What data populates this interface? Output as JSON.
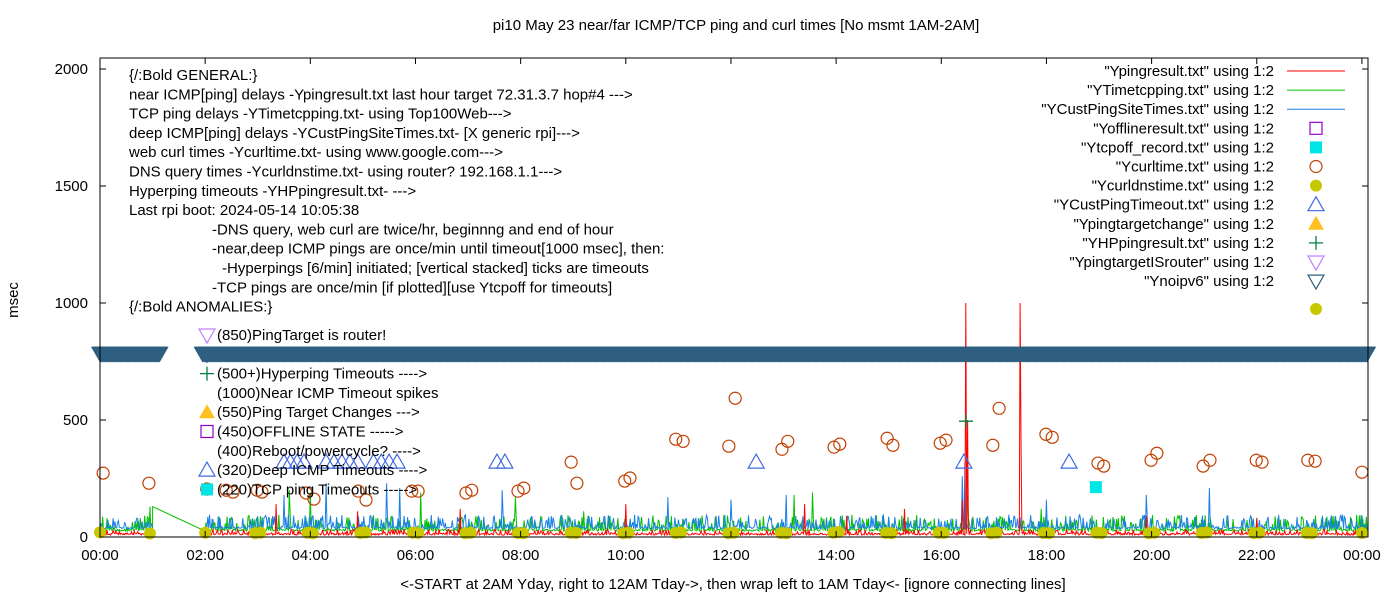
{
  "chart_data": {
    "type": "scatter",
    "title": "pi10 May 23  near/far ICMP/TCP ping and curl times [No msmt 1AM-2AM]",
    "xlabel": "<-START at 2AM Yday, right to 12AM Tday->, then wrap left to 1AM Tday<- [ignore connecting lines]",
    "ylabel": "msec",
    "xlim_hours": [
      0,
      24.1
    ],
    "ylim": [
      0,
      2000
    ],
    "xticks": [
      "00:00",
      "02:00",
      "04:00",
      "06:00",
      "08:00",
      "10:00",
      "12:00",
      "14:00",
      "16:00",
      "18:00",
      "20:00",
      "22:00",
      "00:00"
    ],
    "yticks": [
      "0",
      "500",
      "1000",
      "1500",
      "2000"
    ],
    "grid": false,
    "legend_placement": "top-right",
    "annotations": {
      "general": [
        {
          "text": "{/:Bold GENERAL:}",
          "indent": 0
        },
        {
          "text": "near ICMP[ping] delays -Ypingresult.txt last hour target 72.31.3.7 hop#4 --->",
          "indent": 0
        },
        {
          "text": "TCP ping delays -YTimetcpping.txt- using Top100Web--->",
          "indent": 0
        },
        {
          "text": "deep ICMP[ping] delays -YCustPingSiteTimes.txt- [X generic rpi]--->",
          "indent": 0
        },
        {
          "text": "web curl times -Ycurltime.txt- using www.google.com--->",
          "indent": 0
        },
        {
          "text": "DNS query times -Ycurldnstime.txt- using router? 192.168.1.1--->",
          "indent": 0
        },
        {
          "text": "Hyperping timeouts -YHPpingresult.txt- --->",
          "indent": 0
        },
        {
          "text": "Last rpi boot: 2024-05-14 10:05:38",
          "indent": 0
        },
        {
          "text": "-DNS query, web curl are twice/hr, beginnng and end of hour",
          "indent": 1
        },
        {
          "text": "-near,deep ICMP pings are once/min until timeout[1000 msec], then:",
          "indent": 1
        },
        {
          "text": "-Hyperpings [6/min] initiated; [vertical stacked] ticks are timeouts",
          "indent": 2
        },
        {
          "text": "-TCP pings are once/min [if plotted][use Ytcpoff for timeouts]",
          "indent": 1
        },
        {
          "text": "{/:Bold ANOMALIES:}",
          "indent": 0
        }
      ],
      "anomalies": [
        {
          "text": "(850)PingTarget is router!",
          "marker": "triangle-down-open",
          "color": "#c080ff"
        },
        {
          "text": "",
          "marker": "triangle-down-open",
          "color": "#2f5f80"
        },
        {
          "text": "(500+)Hyperping Timeouts ---->",
          "marker": "plus",
          "color": "#008040"
        },
        {
          "text": "(1000)Near ICMP Timeout spikes",
          "marker": "none",
          "color": "#ff0000"
        },
        {
          "text": "(550)Ping Target Changes --->",
          "marker": "triangle-up-filled",
          "color": "#ffc020"
        },
        {
          "text": "(450)OFFLINE STATE ----->",
          "marker": "square-open",
          "color": "#9400d3"
        },
        {
          "text": "(400)Reboot/powercycle? ---->",
          "marker": "none",
          "color": "#000000"
        },
        {
          "text": "(320)Deep ICMP Timeouts ---->",
          "marker": "triangle-up-open",
          "color": "#4169e1"
        },
        {
          "text": "(220)TCP ping Timeouts ----->",
          "marker": "square-filled",
          "color": "#00e5e5"
        }
      ]
    },
    "legend": [
      {
        "label": "\"Ypingresult.txt\" using 1:2",
        "marker": "line",
        "color": "#ff0000"
      },
      {
        "label": "\"YTimetcpping.txt\" using 1:2",
        "marker": "line",
        "color": "#00c000"
      },
      {
        "label": "\"YCustPingSiteTimes.txt\" using 1:2",
        "marker": "line",
        "color": "#1a80e8"
      },
      {
        "label": "\"Yofflineresult.txt\" using 1:2",
        "marker": "square-open",
        "color": "#9400d3"
      },
      {
        "label": "\"Ytcpoff_record.txt\" using 1:2",
        "marker": "square-filled",
        "color": "#00e5e5"
      },
      {
        "label": "\"Ycurltime.txt\" using 1:2",
        "marker": "circle-open",
        "color": "#c04000"
      },
      {
        "label": "\"Ycurldnstime.txt\" using 1:2",
        "marker": "circle-filled",
        "color": "#c8c800"
      },
      {
        "label": "\"YCustPingTimeout.txt\" using 1:2",
        "marker": "triangle-up-open",
        "color": "#4169e1"
      },
      {
        "label": "\"Ypingtargetchange\" using 1:2",
        "marker": "triangle-up-filled",
        "color": "#ffc020"
      },
      {
        "label": "\"YHPpingresult.txt\" using 1:2",
        "marker": "plus",
        "color": "#008040"
      },
      {
        "label": "\"YpingtargetISrouter\" using 1:2",
        "marker": "triangle-down-open",
        "color": "#c080ff"
      },
      {
        "label": "\"Ynoipv6\" using 1:2",
        "marker": "triangle-down-open",
        "color": "#2f5f80"
      },
      {
        "label": "",
        "marker": "circle-filled",
        "color": "#c8c800"
      }
    ],
    "line_series": [
      {
        "name": "Ypingresult.txt",
        "color": "#ff0000",
        "baseline": 8,
        "noise": 25,
        "gap_hours": [
          1.0,
          2.0
        ],
        "spikes": [
          [
            3.35,
            140
          ],
          [
            4.9,
            110
          ],
          [
            6.85,
            120
          ],
          [
            10.0,
            140
          ],
          [
            13.4,
            140
          ],
          [
            14.2,
            90
          ],
          [
            15.3,
            120
          ],
          [
            16.4,
            160
          ],
          [
            16.47,
            1000
          ],
          [
            16.5,
            500
          ],
          [
            17.5,
            1000
          ],
          [
            17.52,
            420
          ],
          [
            19.9,
            90
          ],
          [
            22.0,
            80
          ]
        ]
      },
      {
        "name": "YTimetcpping.txt",
        "color": "#00c000",
        "baseline": 25,
        "noise": 70,
        "gap_hours": [
          1.0,
          2.0
        ],
        "gap_connect": [
          130,
          25
        ],
        "spikes": [
          [
            0.95,
            130
          ],
          [
            3.6,
            200
          ],
          [
            4.0,
            190
          ],
          [
            6.1,
            190
          ],
          [
            7.9,
            170
          ],
          [
            9.2,
            110
          ],
          [
            13.2,
            180
          ],
          [
            13.55,
            190
          ],
          [
            16.5,
            180
          ],
          [
            17.9,
            120
          ],
          [
            20.5,
            90
          ]
        ]
      },
      {
        "name": "YCustPingSiteTimes.txt",
        "color": "#1a80e8",
        "baseline": 35,
        "noise": 60,
        "gap_hours": [
          1.0,
          2.0
        ],
        "spikes": [
          [
            3.5,
            180
          ],
          [
            4.3,
            230
          ],
          [
            5.45,
            230
          ],
          [
            5.7,
            210
          ],
          [
            7.65,
            200
          ],
          [
            10.8,
            170
          ],
          [
            12.0,
            160
          ],
          [
            13.05,
            180
          ],
          [
            16.4,
            260
          ],
          [
            16.45,
            320
          ],
          [
            18.0,
            160
          ],
          [
            19.9,
            180
          ],
          [
            21.1,
            210
          ]
        ]
      }
    ],
    "curl_times": [
      [
        0.06,
        273
      ],
      [
        0.93,
        230
      ],
      [
        2.03,
        205
      ],
      [
        2.4,
        200
      ],
      [
        2.53,
        192
      ],
      [
        2.99,
        200
      ],
      [
        3.08,
        192
      ],
      [
        3.92,
        188
      ],
      [
        4.07,
        162
      ],
      [
        4.91,
        196
      ],
      [
        5.06,
        158
      ],
      [
        5.93,
        196
      ],
      [
        6.05,
        196
      ],
      [
        6.96,
        188
      ],
      [
        7.07,
        200
      ],
      [
        7.95,
        196
      ],
      [
        8.06,
        209
      ],
      [
        8.96,
        320
      ],
      [
        9.07,
        230
      ],
      [
        9.98,
        239
      ],
      [
        10.08,
        252
      ],
      [
        10.95,
        418
      ],
      [
        11.09,
        409
      ],
      [
        11.96,
        388
      ],
      [
        12.08,
        593
      ],
      [
        12.97,
        375
      ],
      [
        13.08,
        409
      ],
      [
        13.96,
        384
      ],
      [
        14.07,
        397
      ],
      [
        14.97,
        422
      ],
      [
        15.08,
        392
      ],
      [
        15.98,
        401
      ],
      [
        16.09,
        414
      ],
      [
        16.98,
        392
      ],
      [
        17.1,
        550
      ],
      [
        17.99,
        439
      ],
      [
        18.11,
        426
      ],
      [
        18.98,
        316
      ],
      [
        19.09,
        303
      ],
      [
        19.99,
        328
      ],
      [
        20.1,
        358
      ],
      [
        20.98,
        303
      ],
      [
        21.11,
        328
      ],
      [
        21.99,
        328
      ],
      [
        22.1,
        320
      ],
      [
        22.97,
        328
      ],
      [
        23.11,
        324
      ],
      [
        24.0,
        277
      ]
    ],
    "dns_times": [
      [
        0.0,
        20
      ],
      [
        0.95,
        15
      ],
      [
        2.0,
        18
      ],
      [
        2.95,
        16
      ],
      [
        3.05,
        18
      ],
      [
        3.95,
        18
      ],
      [
        4.05,
        16
      ],
      [
        4.95,
        17
      ],
      [
        5.05,
        19
      ],
      [
        5.95,
        18
      ],
      [
        6.05,
        17
      ],
      [
        6.95,
        16
      ],
      [
        7.05,
        18
      ],
      [
        7.95,
        17
      ],
      [
        8.05,
        16
      ],
      [
        8.95,
        18
      ],
      [
        9.05,
        17
      ],
      [
        9.95,
        16
      ],
      [
        10.05,
        18
      ],
      [
        10.95,
        17
      ],
      [
        11.05,
        19
      ],
      [
        11.95,
        16
      ],
      [
        12.05,
        18
      ],
      [
        12.95,
        17
      ],
      [
        13.05,
        16
      ],
      [
        13.95,
        18
      ],
      [
        14.05,
        22
      ],
      [
        14.95,
        17
      ],
      [
        15.05,
        16
      ],
      [
        15.95,
        18
      ],
      [
        16.05,
        17
      ],
      [
        16.95,
        16
      ],
      [
        17.05,
        18
      ],
      [
        17.95,
        17
      ],
      [
        18.05,
        16
      ],
      [
        18.95,
        18
      ],
      [
        19.05,
        17
      ],
      [
        19.95,
        16
      ],
      [
        20.05,
        18
      ],
      [
        20.95,
        17
      ],
      [
        21.05,
        19
      ],
      [
        21.95,
        16
      ],
      [
        22.05,
        18
      ],
      [
        22.95,
        17
      ],
      [
        23.05,
        16
      ],
      [
        24.0,
        17
      ]
    ],
    "deep_icmp_timeouts": [
      [
        3.5,
        320
      ],
      [
        3.62,
        320
      ],
      [
        3.75,
        320
      ],
      [
        3.88,
        320
      ],
      [
        4.3,
        320
      ],
      [
        4.45,
        320
      ],
      [
        4.6,
        320
      ],
      [
        4.75,
        320
      ],
      [
        4.9,
        320
      ],
      [
        5.2,
        320
      ],
      [
        5.35,
        320
      ],
      [
        5.5,
        320
      ],
      [
        5.65,
        320
      ],
      [
        7.55,
        320
      ],
      [
        7.7,
        320
      ],
      [
        12.48,
        320
      ],
      [
        16.43,
        320
      ],
      [
        18.43,
        320
      ]
    ],
    "hyperping_timeouts": [
      [
        16.47,
        495
      ]
    ],
    "tcp_off_records": [
      [
        18.94,
        213
      ]
    ],
    "noipv6": {
      "value": 785,
      "ranges": [
        [
          0,
          1.15
        ],
        [
          1.95,
          24.1
        ]
      ]
    }
  }
}
